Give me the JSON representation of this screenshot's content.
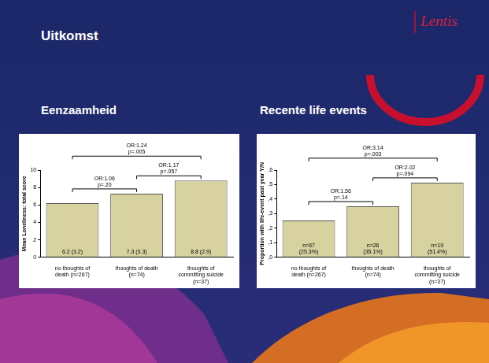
{
  "slide": {
    "title": "Uitkomst",
    "logo": "Lentis"
  },
  "chart_data": [
    {
      "type": "bar",
      "title": "Eenzaamheid",
      "y_label": "Mean Loneliness: total score",
      "categories": [
        [
          "no thoughts of",
          "death (n=267)"
        ],
        [
          "thoughts of death",
          "(n=74)"
        ],
        [
          "thoughts of",
          "committing suicide",
          "(n=37)"
        ]
      ],
      "values": [
        6.2,
        7.3,
        8.8
      ],
      "value_labels": [
        "6.2 (3.2)",
        "7.3 (3.3)",
        "8.8 (2.9)"
      ],
      "data_labels": true,
      "color": "#d8d2a0",
      "grid": false,
      "ylim": [
        0,
        10
      ],
      "yticks": [
        0,
        2,
        4,
        6,
        8,
        10
      ],
      "annotations": [
        {
          "from": 0,
          "to": 1,
          "text": [
            "OR:1.06",
            "p=.20"
          ]
        },
        {
          "from": 1,
          "to": 2,
          "text": [
            "OR:1.17",
            "p=.057"
          ]
        },
        {
          "from": 0,
          "to": 2,
          "text": [
            "OR:1.24",
            "p=.005"
          ]
        }
      ]
    },
    {
      "type": "bar",
      "title": "Recente life events",
      "y_label": "Proportion with life-event past year Y/N",
      "categories": [
        [
          "no thoughts of",
          "death (n=267)"
        ],
        [
          "thoughts of death",
          "(n=74)"
        ],
        [
          "thoughts of",
          "committing suicide",
          "(n=37)"
        ]
      ],
      "values": [
        0.253,
        0.351,
        0.514
      ],
      "value_labels": [
        [
          "n=67",
          "(25.3%)"
        ],
        [
          "n=26",
          "(35.1%)"
        ],
        [
          "n=19",
          "(51.4%)"
        ]
      ],
      "data_labels": true,
      "color": "#d8d2a0",
      "grid": false,
      "ylim": [
        0,
        0.6
      ],
      "yticks": [
        {
          "value": 0,
          "label": ",0"
        },
        {
          "value": 0.1,
          "label": ",1"
        },
        {
          "value": 0.2,
          "label": ",2"
        },
        {
          "value": 0.3,
          "label": ",3"
        },
        {
          "value": 0.4,
          "label": ",4"
        },
        {
          "value": 0.5,
          "label": ",5"
        },
        {
          "value": 0.6,
          "label": ",6"
        }
      ],
      "annotations": [
        {
          "from": 0,
          "to": 1,
          "text": [
            "OR:1.56",
            "p=.14"
          ]
        },
        {
          "from": 1,
          "to": 2,
          "text": [
            "OR:2.02",
            "p=.094"
          ]
        },
        {
          "from": 0,
          "to": 2,
          "text": [
            "OR:3.14",
            "p=.003"
          ]
        }
      ]
    }
  ]
}
